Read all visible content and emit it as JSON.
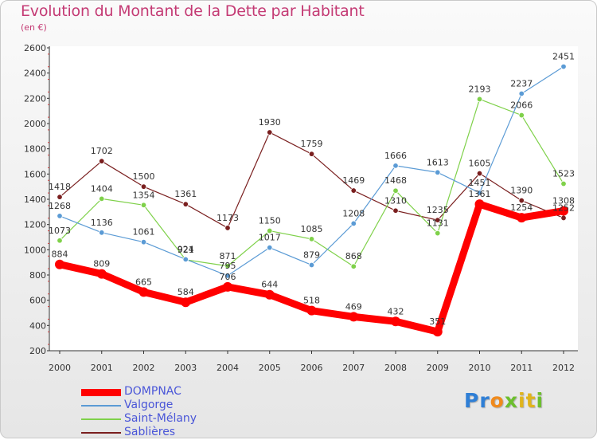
{
  "title": "Evolution du Montant de la Dette par Habitant",
  "subtitle": "(en €)",
  "brand": {
    "letters": [
      {
        "ch": "P",
        "color": "#2f7fd6"
      },
      {
        "ch": "r",
        "color": "#2f7fd6"
      },
      {
        "ch": "o",
        "color": "#f08a1c"
      },
      {
        "ch": "x",
        "color": "#6cbf2d"
      },
      {
        "ch": "i",
        "color": "#e0b41c"
      },
      {
        "ch": "t",
        "color": "#e0b41c"
      },
      {
        "ch": "i",
        "color": "#6cbf2d"
      }
    ]
  },
  "chart_data": {
    "type": "line",
    "title": "Evolution du Montant de la Dette par Habitant",
    "subtitle": "(en €)",
    "x": [
      "2000",
      "2001",
      "2002",
      "2003",
      "2004",
      "2005",
      "2006",
      "2007",
      "2008",
      "2009",
      "2010",
      "2011",
      "2012"
    ],
    "ylim": [
      200,
      2600
    ],
    "yticks": [
      200,
      400,
      600,
      800,
      1000,
      1200,
      1400,
      1600,
      1800,
      2000,
      2200,
      2400,
      2600
    ],
    "grid": false,
    "legend_position": "bottom-left",
    "series": [
      {
        "name": "DOMPNAC",
        "color": "#ff0000",
        "values": [
          884,
          809,
          665,
          584,
          706,
          644,
          518,
          469,
          432,
          351,
          1361,
          1254,
          1308
        ]
      },
      {
        "name": "Valgorge",
        "color": "#5b9bd5",
        "values": [
          1268,
          1136,
          1061,
          924,
          795,
          1017,
          879,
          1208,
          1666,
          1613,
          1451,
          2237,
          2451
        ]
      },
      {
        "name": "Saint-Mélany",
        "color": "#7fd14a",
        "values": [
          1073,
          1404,
          1354,
          921,
          871,
          1150,
          1085,
          868,
          1468,
          1131,
          2193,
          2066,
          1523
        ]
      },
      {
        "name": "Sablières",
        "color": "#7a1f1f",
        "values": [
          1418,
          1702,
          1500,
          1361,
          1173,
          1930,
          1759,
          1469,
          1310,
          1235,
          1605,
          1390,
          1252
        ]
      }
    ]
  }
}
